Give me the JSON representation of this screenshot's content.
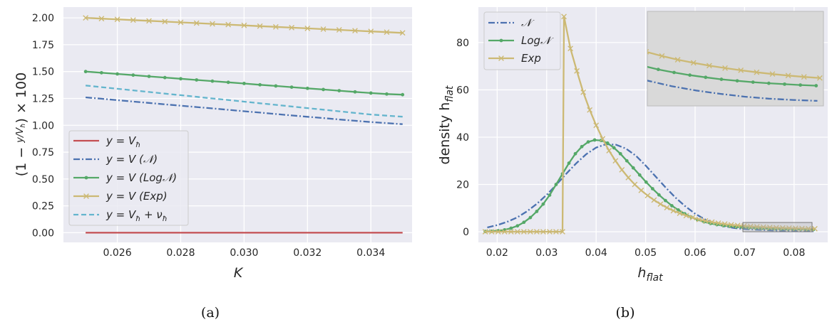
{
  "chart_data": [
    {
      "type": "line",
      "panel_caption": "(a)",
      "xlabel": "K",
      "ylabel": "(1 − y/V_ħ) × 100",
      "ylabel_parts": {
        "open": "(1 − ",
        "num": "y",
        "den": "V",
        "den_sub": "ħ",
        "close": ") × 100"
      },
      "xlim": [
        0.0243,
        0.0353
      ],
      "ylim": [
        -0.09,
        2.1
      ],
      "xticks": [
        0.026,
        0.028,
        0.03,
        0.032,
        0.034
      ],
      "xtick_labels": [
        "0.026",
        "0.028",
        "0.030",
        "0.032",
        "0.034"
      ],
      "yticks": [
        0.0,
        0.25,
        0.5,
        0.75,
        1.0,
        1.25,
        1.5,
        1.75,
        2.0
      ],
      "ytick_labels": [
        "0.00",
        "0.25",
        "0.50",
        "0.75",
        "1.00",
        "1.25",
        "1.50",
        "1.75",
        "2.00"
      ],
      "x": [
        0.025,
        0.0255,
        0.026,
        0.0265,
        0.027,
        0.0275,
        0.028,
        0.0285,
        0.029,
        0.0295,
        0.03,
        0.0305,
        0.031,
        0.0315,
        0.032,
        0.0325,
        0.033,
        0.0335,
        0.034,
        0.0345,
        0.035
      ],
      "series": [
        {
          "name": "y = V_ħ",
          "legend": "y = V",
          "legend_sub": "ħ",
          "legend_tail": "",
          "color": "#c44e52",
          "style": "solid",
          "marker": "none",
          "values": [
            0,
            0,
            0,
            0,
            0,
            0,
            0,
            0,
            0,
            0,
            0,
            0,
            0,
            0,
            0,
            0,
            0,
            0,
            0,
            0,
            0
          ]
        },
        {
          "name": "y = V (𝒩)",
          "legend": "y = V (𝒩)",
          "legend_sub": "",
          "legend_tail": "",
          "color": "#4c72b0",
          "style": "dashdot",
          "marker": "none",
          "values": [
            1.26,
            1.247,
            1.234,
            1.221,
            1.208,
            1.195,
            1.182,
            1.17,
            1.157,
            1.144,
            1.131,
            1.118,
            1.105,
            1.092,
            1.079,
            1.067,
            1.054,
            1.042,
            1.03,
            1.02,
            1.01
          ]
        },
        {
          "name": "y = V (Log𝒩)",
          "legend": "y = V (Log𝒩)",
          "legend_sub": "",
          "legend_tail": "",
          "color": "#55a868",
          "style": "solid",
          "marker": "dot",
          "values": [
            1.5,
            1.489,
            1.478,
            1.467,
            1.455,
            1.444,
            1.433,
            1.422,
            1.411,
            1.4,
            1.389,
            1.377,
            1.366,
            1.355,
            1.344,
            1.333,
            1.322,
            1.311,
            1.3,
            1.291,
            1.285
          ]
        },
        {
          "name": "y = V (Exp)",
          "legend": "y = V (Exp)",
          "legend_sub": "",
          "legend_tail": "",
          "color": "#ccb974",
          "style": "solid",
          "marker": "x",
          "values": [
            2.0,
            1.993,
            1.986,
            1.979,
            1.972,
            1.965,
            1.958,
            1.951,
            1.944,
            1.937,
            1.93,
            1.923,
            1.916,
            1.909,
            1.902,
            1.895,
            1.888,
            1.881,
            1.874,
            1.867,
            1.86
          ]
        },
        {
          "name": "y = V_ħ + ν_ħ",
          "legend": "y = V",
          "legend_sub": "ħ",
          "legend_tail": " + ν",
          "legend_tail_sub": "ħ",
          "color": "#64b5cd",
          "style": "dashed",
          "marker": "none",
          "values": [
            1.37,
            1.355,
            1.34,
            1.325,
            1.31,
            1.295,
            1.28,
            1.265,
            1.25,
            1.235,
            1.22,
            1.205,
            1.19,
            1.175,
            1.16,
            1.145,
            1.13,
            1.115,
            1.1,
            1.09,
            1.08
          ]
        }
      ]
    },
    {
      "type": "line",
      "panel_caption": "(b)",
      "xlabel": "h",
      "xlabel_sub": "flat",
      "ylabel": "density h",
      "ylabel_sub": "flat",
      "xlim": [
        0.0162,
        0.0868
      ],
      "ylim": [
        -4.5,
        95
      ],
      "xticks": [
        0.02,
        0.03,
        0.04,
        0.05,
        0.06,
        0.07,
        0.08
      ],
      "xtick_labels": [
        "0.02",
        "0.03",
        "0.04",
        "0.05",
        "0.06",
        "0.07",
        "0.08"
      ],
      "yticks": [
        0,
        20,
        40,
        60,
        80
      ],
      "ytick_labels": [
        "0",
        "20",
        "40",
        "60",
        "80"
      ],
      "inset_xlim": [
        0.07,
        0.0845
      ],
      "inset_ylim": [
        0,
        4.3
      ],
      "series": [
        {
          "name": "𝒩",
          "color": "#4c72b0",
          "style": "dashdot",
          "marker": "none",
          "x": [
            0.018,
            0.02,
            0.022,
            0.024,
            0.026,
            0.028,
            0.03,
            0.032,
            0.034,
            0.036,
            0.038,
            0.04,
            0.042,
            0.044,
            0.046,
            0.048,
            0.05,
            0.052,
            0.054,
            0.056,
            0.058,
            0.06,
            0.062,
            0.064,
            0.066,
            0.068,
            0.07,
            0.072,
            0.074,
            0.076,
            0.078,
            0.08,
            0.082,
            0.084
          ],
          "values": [
            1.8,
            2.8,
            4.2,
            6.0,
            8.6,
            11.8,
            15.6,
            20.0,
            24.6,
            29.0,
            32.8,
            35.6,
            37.0,
            36.8,
            35.2,
            32.2,
            28.0,
            23.4,
            18.8,
            14.5,
            10.8,
            7.6,
            5.2,
            3.4,
            2.25,
            1.55,
            1.15,
            0.9,
            0.7,
            0.55,
            0.42,
            0.33,
            0.27,
            0.23
          ]
        },
        {
          "name": "Log𝒩",
          "color": "#55a868",
          "style": "solid",
          "marker": "dot",
          "x": [
            0.0176,
            0.0189,
            0.0202,
            0.0215,
            0.0228,
            0.0241,
            0.0254,
            0.0267,
            0.028,
            0.0293,
            0.0306,
            0.0319,
            0.0332,
            0.0345,
            0.0358,
            0.0371,
            0.0384,
            0.0397,
            0.041,
            0.0423,
            0.0436,
            0.0449,
            0.0462,
            0.0475,
            0.0488,
            0.0501,
            0.0514,
            0.0527,
            0.054,
            0.0553,
            0.0566,
            0.0579,
            0.0592,
            0.0605,
            0.0618,
            0.0631,
            0.0644,
            0.0657,
            0.067,
            0.0683,
            0.0696,
            0.0709,
            0.0722,
            0.0735,
            0.0748,
            0.0761,
            0.0774,
            0.0787,
            0.08,
            0.0813,
            0.0826,
            0.0839
          ],
          "values": [
            0.1,
            0.2,
            0.4,
            0.8,
            1.5,
            2.5,
            4.0,
            6.0,
            8.6,
            11.7,
            15.5,
            20.0,
            24.5,
            29.0,
            33.0,
            36.0,
            38.0,
            38.8,
            38.6,
            37.5,
            35.5,
            33.0,
            30.0,
            27.0,
            24.0,
            21.0,
            18.2,
            15.6,
            13.2,
            11.0,
            9.2,
            7.6,
            6.2,
            5.1,
            4.2,
            3.5,
            3.0,
            2.58,
            2.28,
            2.03,
            1.83,
            1.66,
            1.52,
            1.4,
            1.3,
            1.21,
            1.14,
            1.08,
            1.03,
            0.99,
            0.95,
            0.92
          ]
        },
        {
          "name": "Exp",
          "color": "#ccb974",
          "style": "solid",
          "marker": "x",
          "x": [
            0.0176,
            0.0189,
            0.0202,
            0.0215,
            0.0228,
            0.0241,
            0.0254,
            0.0267,
            0.028,
            0.0293,
            0.0306,
            0.0319,
            0.0332,
            0.0335,
            0.0348,
            0.0361,
            0.0374,
            0.0387,
            0.04,
            0.0413,
            0.0426,
            0.0439,
            0.0452,
            0.0465,
            0.0478,
            0.0491,
            0.0504,
            0.0517,
            0.053,
            0.0543,
            0.0556,
            0.0569,
            0.0582,
            0.0595,
            0.0608,
            0.0621,
            0.0634,
            0.0647,
            0.066,
            0.0673,
            0.0686,
            0.0699,
            0.0712,
            0.0725,
            0.0738,
            0.0751,
            0.0764,
            0.0777,
            0.079,
            0.0803,
            0.0816,
            0.0829,
            0.0842
          ],
          "values": [
            0,
            0,
            0,
            0,
            0,
            0,
            0,
            0,
            0,
            0,
            0,
            0,
            0,
            91.0,
            77.5,
            68.0,
            59.0,
            51.5,
            45.0,
            39.3,
            34.3,
            30.0,
            26.2,
            22.9,
            20.0,
            17.5,
            15.3,
            13.4,
            11.7,
            10.2,
            8.9,
            7.8,
            6.8,
            6.0,
            5.2,
            4.6,
            4.1,
            3.65,
            3.27,
            2.95,
            2.68,
            2.46,
            2.27,
            2.1,
            1.96,
            1.83,
            1.72,
            1.62,
            1.53,
            1.45,
            1.38,
            1.32,
            1.27
          ]
        }
      ]
    }
  ]
}
